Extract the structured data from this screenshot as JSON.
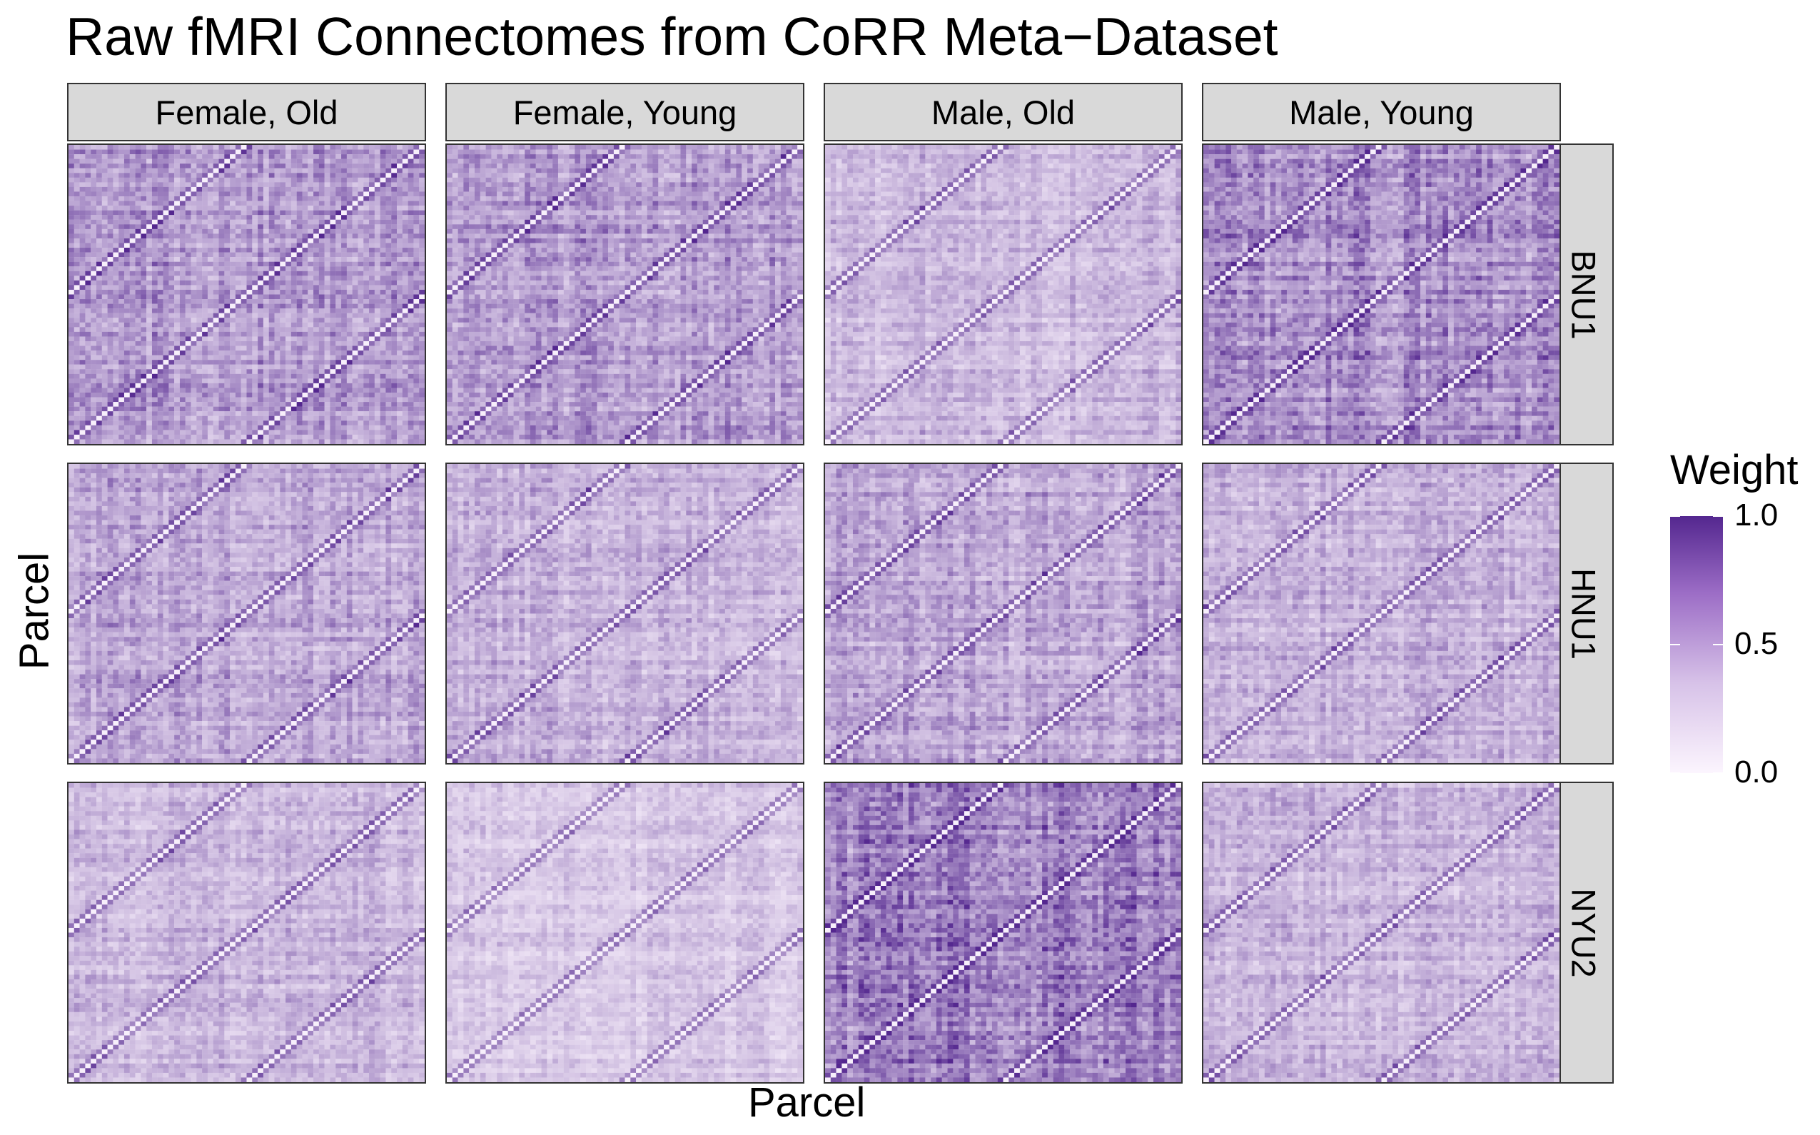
{
  "chart_data": {
    "type": "heatmap",
    "title": "Raw fMRI Connectomes from CoRR Meta−Dataset",
    "xlabel": "Parcel",
    "ylabel": "Parcel",
    "facet_columns": [
      "Female, Old",
      "Female, Young",
      "Male, Old",
      "Male, Young"
    ],
    "facet_rows": [
      "BNU1",
      "HNU1",
      "NYU2"
    ],
    "panels": [
      {
        "row": "BNU1",
        "col": "Female, Old",
        "mean_weight": 0.45
      },
      {
        "row": "BNU1",
        "col": "Female, Young",
        "mean_weight": 0.45
      },
      {
        "row": "BNU1",
        "col": "Male, Old",
        "mean_weight": 0.3
      },
      {
        "row": "BNU1",
        "col": "Male, Young",
        "mean_weight": 0.5
      },
      {
        "row": "HNU1",
        "col": "Female, Old",
        "mean_weight": 0.38
      },
      {
        "row": "HNU1",
        "col": "Female, Young",
        "mean_weight": 0.32
      },
      {
        "row": "HNU1",
        "col": "Male, Old",
        "mean_weight": 0.38
      },
      {
        "row": "HNU1",
        "col": "Male, Young",
        "mean_weight": 0.32
      },
      {
        "row": "NYU2",
        "col": "Female, Old",
        "mean_weight": 0.3
      },
      {
        "row": "NYU2",
        "col": "Female, Young",
        "mean_weight": 0.22
      },
      {
        "row": "NYU2",
        "col": "Male, Old",
        "mean_weight": 0.55
      },
      {
        "row": "NYU2",
        "col": "Male, Young",
        "mean_weight": 0.3
      }
    ],
    "legend": {
      "title": "Weight",
      "range": [
        0.0,
        1.0
      ],
      "ticks": [
        "0.0",
        "0.5",
        "1.0"
      ],
      "colors": [
        "#fcf5fe",
        "#d7c2e8",
        "#9c6dc6",
        "#54278f"
      ],
      "placement": "right"
    },
    "grid": false
  }
}
